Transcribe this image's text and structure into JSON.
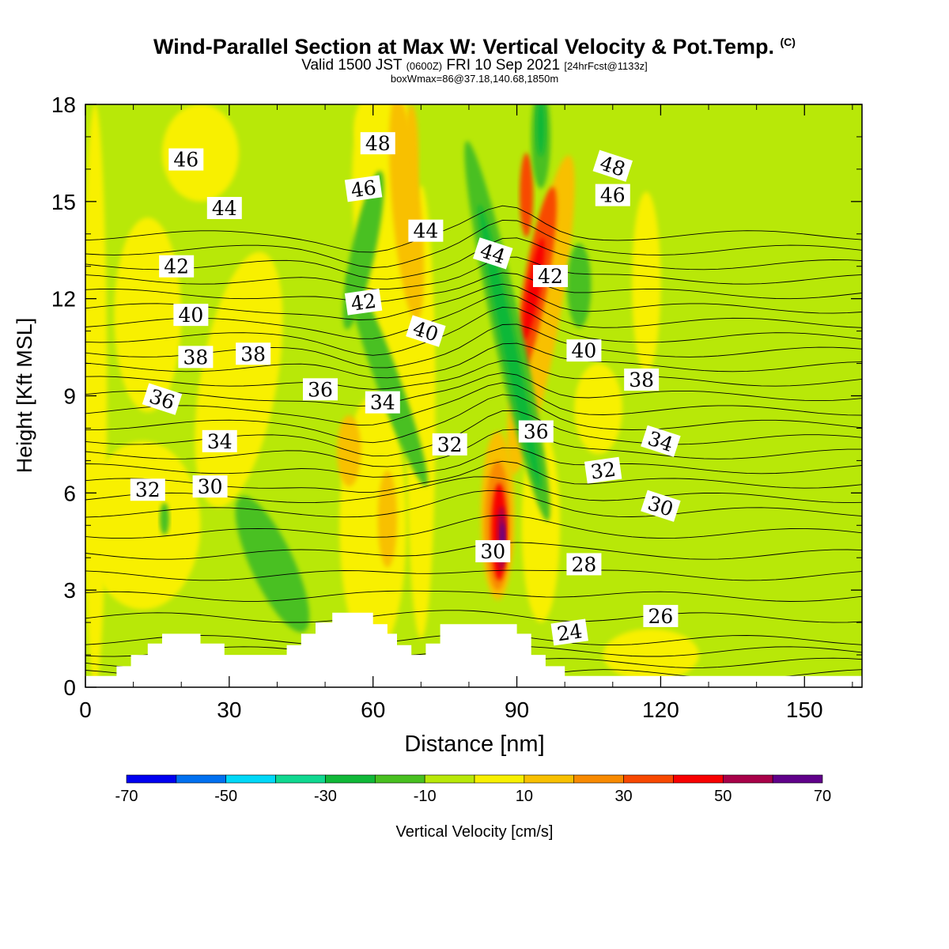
{
  "header": {
    "title": "Wind-Parallel Section at Max W: Vertical Velocity & Pot.Temp.",
    "title_mark": "(C)",
    "valid_prefix": "Valid 1500 JST",
    "valid_utc": "(0600Z)",
    "valid_date": "FRI 10 Sep 2021",
    "forecast_info": "[24hrFcst@1133z]",
    "subtitle": "boxWmax=86@37.18,140.68,1850m"
  },
  "chart_data": {
    "type": "heatmap",
    "xlabel": "Distance [nm]",
    "ylabel": "Height [Kft MSL]",
    "xlim": [
      0,
      162
    ],
    "ylim": [
      0,
      18
    ],
    "x_ticks": [
      0,
      30,
      60,
      90,
      120,
      150
    ],
    "y_ticks": [
      0,
      3,
      6,
      9,
      12,
      15,
      18
    ],
    "colorbar": {
      "label": "Vertical Velocity [cm/s]",
      "ticks": [
        -70,
        -50,
        -30,
        -10,
        10,
        30,
        50,
        70
      ],
      "bounds": [
        -70,
        -60,
        -50,
        -40,
        -30,
        -20,
        -10,
        0,
        10,
        20,
        30,
        40,
        50,
        60,
        70
      ],
      "colors": [
        "#0000f0",
        "#0070f0",
        "#00d8f8",
        "#10d890",
        "#10b838",
        "#48c020",
        "#b8e808",
        "#f8f000",
        "#f8c000",
        "#f88a00",
        "#f84800",
        "#f80000",
        "#a80048",
        "#60008a"
      ]
    },
    "theta_contours": {
      "units": "°C",
      "interval": 1,
      "labels": [
        {
          "value": "46",
          "x": 21,
          "y": 16.3
        },
        {
          "value": "48",
          "x": 61,
          "y": 16.8
        },
        {
          "value": "48",
          "x": 110,
          "y": 16.1
        },
        {
          "value": "46",
          "x": 58,
          "y": 15.4
        },
        {
          "value": "46",
          "x": 110,
          "y": 15.2
        },
        {
          "value": "44",
          "x": 29,
          "y": 14.8
        },
        {
          "value": "44",
          "x": 71,
          "y": 14.1
        },
        {
          "value": "44",
          "x": 85,
          "y": 13.4
        },
        {
          "value": "42",
          "x": 19,
          "y": 13.0
        },
        {
          "value": "42",
          "x": 97,
          "y": 12.7
        },
        {
          "value": "42",
          "x": 58,
          "y": 11.9
        },
        {
          "value": "40",
          "x": 22,
          "y": 11.5
        },
        {
          "value": "40",
          "x": 71,
          "y": 11.0
        },
        {
          "value": "40",
          "x": 104,
          "y": 10.4
        },
        {
          "value": "38",
          "x": 23,
          "y": 10.2
        },
        {
          "value": "38",
          "x": 35,
          "y": 10.3
        },
        {
          "value": "38",
          "x": 116,
          "y": 9.5
        },
        {
          "value": "36",
          "x": 16,
          "y": 8.9
        },
        {
          "value": "36",
          "x": 49,
          "y": 9.2
        },
        {
          "value": "36",
          "x": 94,
          "y": 7.9
        },
        {
          "value": "34",
          "x": 62,
          "y": 8.8
        },
        {
          "value": "34",
          "x": 28,
          "y": 7.6
        },
        {
          "value": "34",
          "x": 120,
          "y": 7.6
        },
        {
          "value": "32",
          "x": 76,
          "y": 7.5
        },
        {
          "value": "32",
          "x": 108,
          "y": 6.7
        },
        {
          "value": "32",
          "x": 13,
          "y": 6.1
        },
        {
          "value": "30",
          "x": 26,
          "y": 6.2
        },
        {
          "value": "30",
          "x": 120,
          "y": 5.6
        },
        {
          "value": "30",
          "x": 85,
          "y": 4.2
        },
        {
          "value": "28",
          "x": 104,
          "y": 3.8
        },
        {
          "value": "26",
          "x": 120,
          "y": 2.2
        },
        {
          "value": "24",
          "x": 101,
          "y": 1.7
        }
      ]
    },
    "terrain_kft": [
      [
        0,
        0.35
      ],
      [
        6.5,
        0.35
      ],
      [
        6.5,
        0.65
      ],
      [
        9.5,
        0.65
      ],
      [
        9.5,
        1.0
      ],
      [
        13,
        1.0
      ],
      [
        13,
        1.35
      ],
      [
        16,
        1.35
      ],
      [
        16,
        1.65
      ],
      [
        24,
        1.65
      ],
      [
        24,
        1.35
      ],
      [
        29,
        1.35
      ],
      [
        29,
        1.0
      ],
      [
        42,
        1.0
      ],
      [
        42,
        1.3
      ],
      [
        45,
        1.3
      ],
      [
        45,
        1.65
      ],
      [
        48,
        1.65
      ],
      [
        48,
        2.0
      ],
      [
        51.5,
        2.0
      ],
      [
        51.5,
        2.3
      ],
      [
        60,
        2.3
      ],
      [
        60,
        1.95
      ],
      [
        63,
        1.95
      ],
      [
        63,
        1.65
      ],
      [
        65,
        1.65
      ],
      [
        65,
        1.3
      ],
      [
        68,
        1.3
      ],
      [
        68,
        1.0
      ],
      [
        71,
        1.0
      ],
      [
        71,
        1.35
      ],
      [
        74,
        1.35
      ],
      [
        74,
        1.95
      ],
      [
        90,
        1.95
      ],
      [
        90,
        1.65
      ],
      [
        93,
        1.65
      ],
      [
        93,
        1.0
      ],
      [
        96,
        1.0
      ],
      [
        96,
        0.65
      ],
      [
        100,
        0.65
      ],
      [
        100,
        0.35
      ],
      [
        162,
        0.35
      ]
    ]
  }
}
